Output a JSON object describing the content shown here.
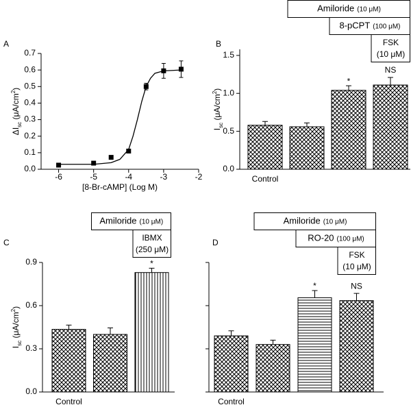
{
  "chart_data": [
    {
      "type": "scatter",
      "label": "A",
      "x": [
        -6,
        -5,
        -4.5,
        -4,
        -3.5,
        -3,
        -2.5
      ],
      "values": [
        0.025,
        0.037,
        0.072,
        0.11,
        0.5,
        0.595,
        0.605
      ],
      "errors": [
        0.005,
        0.005,
        0.005,
        0.01,
        0.02,
        0.045,
        0.05
      ],
      "fit": {
        "x": [
          -6,
          -5,
          -4.5,
          -4.25,
          -4,
          -3.875,
          -3.75,
          -3.625,
          -3.5,
          -3.375,
          -3.25,
          -3,
          -2.5
        ],
        "values": [
          0.03,
          0.03,
          0.04,
          0.06,
          0.12,
          0.2,
          0.3,
          0.41,
          0.5,
          0.55,
          0.58,
          0.595,
          0.6
        ]
      },
      "color": "#000000",
      "xlabel": "[8-Br-cAMP] (Log M)",
      "ylabel": [
        "ΔI",
        "sc",
        " (μA/cm",
        "2",
        ")"
      ],
      "xlim": [
        -6.5,
        -2
      ],
      "xticks": [
        -6,
        -5,
        -4,
        -3,
        -2
      ],
      "ylim": [
        0,
        0.7
      ],
      "yticks": [
        {
          "value": 0,
          "label": "0.0"
        },
        0.1,
        0.2,
        0.3,
        0.4,
        0.5,
        0.6,
        0.7
      ]
    },
    {
      "type": "bar",
      "label": "B",
      "categories": [
        "Control",
        null,
        null,
        null
      ],
      "values": [
        0.58,
        0.56,
        1.04,
        1.11
      ],
      "errors": [
        0.05,
        0.05,
        0.06,
        0.1
      ],
      "patterns": [
        "crosshatch",
        "crosshatch",
        "crosshatch",
        "crosshatch"
      ],
      "bar_labels": [
        null,
        null,
        "*",
        "NS"
      ],
      "treatments": [
        {
          "name": "Amiloride",
          "dose": "(10 μM)"
        },
        {
          "name": "8-pCPT",
          "dose": "(100 μM)"
        },
        {
          "name": "FSK",
          "dose": "(10 μM)"
        }
      ],
      "ylabel": [
        "I",
        "sc",
        " (μA/cm",
        "2",
        ")"
      ],
      "ylim": [
        0,
        1.58
      ],
      "yticks": [
        {
          "value": 0,
          "label": "0.0"
        },
        0.5,
        {
          "value": 1,
          "label": "1.0"
        },
        1.5
      ]
    },
    {
      "type": "bar",
      "label": "C",
      "categories": [
        "Control",
        null,
        null
      ],
      "values": [
        0.435,
        0.4,
        0.83
      ],
      "errors": [
        0.03,
        0.045,
        0.03
      ],
      "patterns": [
        "crosshatch",
        "crosshatch",
        "vertical"
      ],
      "bar_labels": [
        null,
        null,
        "*"
      ],
      "treatments": [
        {
          "name": "Amiloride",
          "dose": "(10 μM)"
        },
        {
          "name": "IBMX",
          "dose": "(250 μM)"
        }
      ],
      "ylabel": [
        "I",
        "sc",
        " (μA/cm",
        "2",
        ")"
      ],
      "ylim": [
        0,
        0.9
      ],
      "yticks": [
        {
          "value": 0,
          "label": "0.0"
        },
        0.3,
        0.6,
        0.9
      ]
    },
    {
      "type": "bar",
      "label": "D",
      "categories": [
        "Control",
        null,
        null,
        null
      ],
      "values": [
        0.39,
        0.33,
        0.655,
        0.635
      ],
      "errors": [
        0.035,
        0.03,
        0.05,
        0.05
      ],
      "patterns": [
        "crosshatch",
        "crosshatch",
        "horizontal",
        "crosshatch"
      ],
      "bar_labels": [
        null,
        null,
        "*",
        "NS"
      ],
      "treatments": [
        {
          "name": "Amiloride",
          "dose": "(10 μM)"
        },
        {
          "name": "RO-20",
          "dose": "(100 μM)"
        },
        {
          "name": "FSK",
          "dose": "(10 μM)"
        }
      ],
      "ylim": [
        0,
        0.9
      ],
      "yticks": [
        0,
        0.3,
        0.6,
        0.9
      ],
      "tick_labels": false
    }
  ]
}
